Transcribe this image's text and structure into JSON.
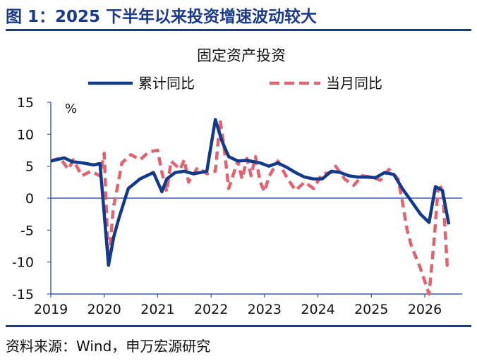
{
  "header": {
    "title": "图 1：2025 下半年以来投资增速波动较大",
    "source": "资料来源：Wind，申万宏源研究"
  },
  "colors": {
    "accent": "#1b3a8c",
    "cumulative": "#123a8c",
    "monthly": "#e06470"
  },
  "chart_data": {
    "type": "line",
    "title": "固定资产投资",
    "ylabel": "%",
    "xlabel": "",
    "xlim": [
      2019,
      2026.7
    ],
    "ylim": [
      -15,
      15
    ],
    "yticks": [
      15,
      10,
      5,
      0,
      -5,
      -10,
      -15
    ],
    "xticks": [
      "2019",
      "2020",
      "2021",
      "2022",
      "2023",
      "2024",
      "2025",
      "2026"
    ],
    "grid": false,
    "legend": "top",
    "series": [
      {
        "name": "累计同比",
        "style": "solid",
        "color": "#123a8c",
        "points": [
          [
            2019.0,
            5.8
          ],
          [
            2019.25,
            6.3
          ],
          [
            2019.4,
            5.7
          ],
          [
            2019.6,
            5.5
          ],
          [
            2019.8,
            5.2
          ],
          [
            2019.92,
            5.4
          ],
          [
            2020.08,
            -10.5
          ],
          [
            2020.18,
            -6.0
          ],
          [
            2020.28,
            -3.0
          ],
          [
            2020.45,
            1.5
          ],
          [
            2020.67,
            3.0
          ],
          [
            2020.92,
            4.0
          ],
          [
            2021.08,
            1.0
          ],
          [
            2021.17,
            3.0
          ],
          [
            2021.33,
            4.0
          ],
          [
            2021.5,
            4.2
          ],
          [
            2021.67,
            3.8
          ],
          [
            2021.92,
            4.2
          ],
          [
            2022.08,
            12.3
          ],
          [
            2022.2,
            9.0
          ],
          [
            2022.33,
            6.5
          ],
          [
            2022.5,
            5.8
          ],
          [
            2022.67,
            5.9
          ],
          [
            2022.92,
            5.5
          ],
          [
            2023.08,
            5.0
          ],
          [
            2023.25,
            5.5
          ],
          [
            2023.42,
            4.8
          ],
          [
            2023.58,
            4.0
          ],
          [
            2023.75,
            3.3
          ],
          [
            2023.92,
            3.0
          ],
          [
            2024.08,
            3.0
          ],
          [
            2024.25,
            4.2
          ],
          [
            2024.42,
            4.0
          ],
          [
            2024.58,
            3.5
          ],
          [
            2024.75,
            3.3
          ],
          [
            2024.92,
            3.3
          ],
          [
            2025.08,
            3.2
          ],
          [
            2025.25,
            4.0
          ],
          [
            2025.42,
            3.7
          ],
          [
            2025.58,
            1.5
          ],
          [
            2025.75,
            -0.5
          ],
          [
            2025.92,
            -2.5
          ],
          [
            2026.08,
            -3.8
          ],
          [
            2026.2,
            1.8
          ],
          [
            2026.33,
            1.2
          ],
          [
            2026.45,
            -4.1
          ]
        ]
      },
      {
        "name": "当月同比",
        "style": "dashed",
        "color": "#e06470",
        "points": [
          [
            2019.0,
            5.8
          ],
          [
            2019.17,
            6.3
          ],
          [
            2019.33,
            4.5
          ],
          [
            2019.42,
            6.0
          ],
          [
            2019.58,
            3.5
          ],
          [
            2019.75,
            4.2
          ],
          [
            2019.92,
            3.5
          ],
          [
            2020.0,
            7.0
          ],
          [
            2020.08,
            -10.5
          ],
          [
            2020.17,
            -1.5
          ],
          [
            2020.25,
            1.8
          ],
          [
            2020.33,
            5.5
          ],
          [
            2020.5,
            6.8
          ],
          [
            2020.67,
            6.0
          ],
          [
            2020.83,
            7.2
          ],
          [
            2021.0,
            7.5
          ],
          [
            2021.08,
            4.0
          ],
          [
            2021.17,
            1.0
          ],
          [
            2021.25,
            5.8
          ],
          [
            2021.42,
            4.5
          ],
          [
            2021.5,
            6.0
          ],
          [
            2021.58,
            2.5
          ],
          [
            2021.75,
            4.8
          ],
          [
            2021.92,
            3.8
          ],
          [
            2022.08,
            4.2
          ],
          [
            2022.17,
            12.2
          ],
          [
            2022.25,
            7.5
          ],
          [
            2022.33,
            1.5
          ],
          [
            2022.5,
            5.8
          ],
          [
            2022.58,
            3.0
          ],
          [
            2022.67,
            6.2
          ],
          [
            2022.75,
            3.5
          ],
          [
            2022.83,
            6.5
          ],
          [
            2022.92,
            2.5
          ],
          [
            2023.0,
            1.0
          ],
          [
            2023.08,
            3.3
          ],
          [
            2023.25,
            5.8
          ],
          [
            2023.42,
            3.2
          ],
          [
            2023.58,
            1.2
          ],
          [
            2023.75,
            2.5
          ],
          [
            2023.92,
            1.5
          ],
          [
            2024.08,
            3.8
          ],
          [
            2024.25,
            4.0
          ],
          [
            2024.33,
            5.0
          ],
          [
            2024.5,
            3.0
          ],
          [
            2024.67,
            2.0
          ],
          [
            2024.83,
            3.5
          ],
          [
            2025.0,
            3.3
          ],
          [
            2025.17,
            2.8
          ],
          [
            2025.33,
            4.5
          ],
          [
            2025.5,
            3.0
          ],
          [
            2025.58,
            -0.5
          ],
          [
            2025.67,
            -5.0
          ],
          [
            2025.75,
            -7.5
          ],
          [
            2025.92,
            -11.0
          ],
          [
            2026.0,
            -13.0
          ],
          [
            2026.08,
            -15.0
          ],
          [
            2026.17,
            -7.0
          ],
          [
            2026.25,
            1.5
          ],
          [
            2026.33,
            1.8
          ],
          [
            2026.42,
            -10.5
          ],
          [
            2026.5,
            -11.0
          ]
        ]
      }
    ]
  }
}
